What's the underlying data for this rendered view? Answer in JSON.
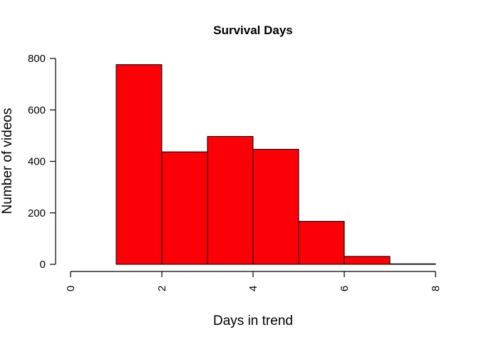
{
  "chart_data": {
    "type": "bar",
    "title": "Survival Days",
    "xlabel": "Days in trend",
    "ylabel": "Number of videos",
    "bin_edges": [
      1,
      2,
      3,
      4,
      5,
      6,
      7,
      8
    ],
    "values": [
      776,
      437,
      497,
      447,
      167,
      31,
      2
    ],
    "xlim": [
      0,
      8
    ],
    "ylim": [
      0,
      800
    ],
    "x_ticks": [
      0,
      2,
      4,
      6,
      8
    ],
    "y_ticks": [
      0,
      200,
      400,
      600,
      800
    ],
    "bar_color": "#FC0007",
    "grid": false,
    "legend": "none"
  }
}
